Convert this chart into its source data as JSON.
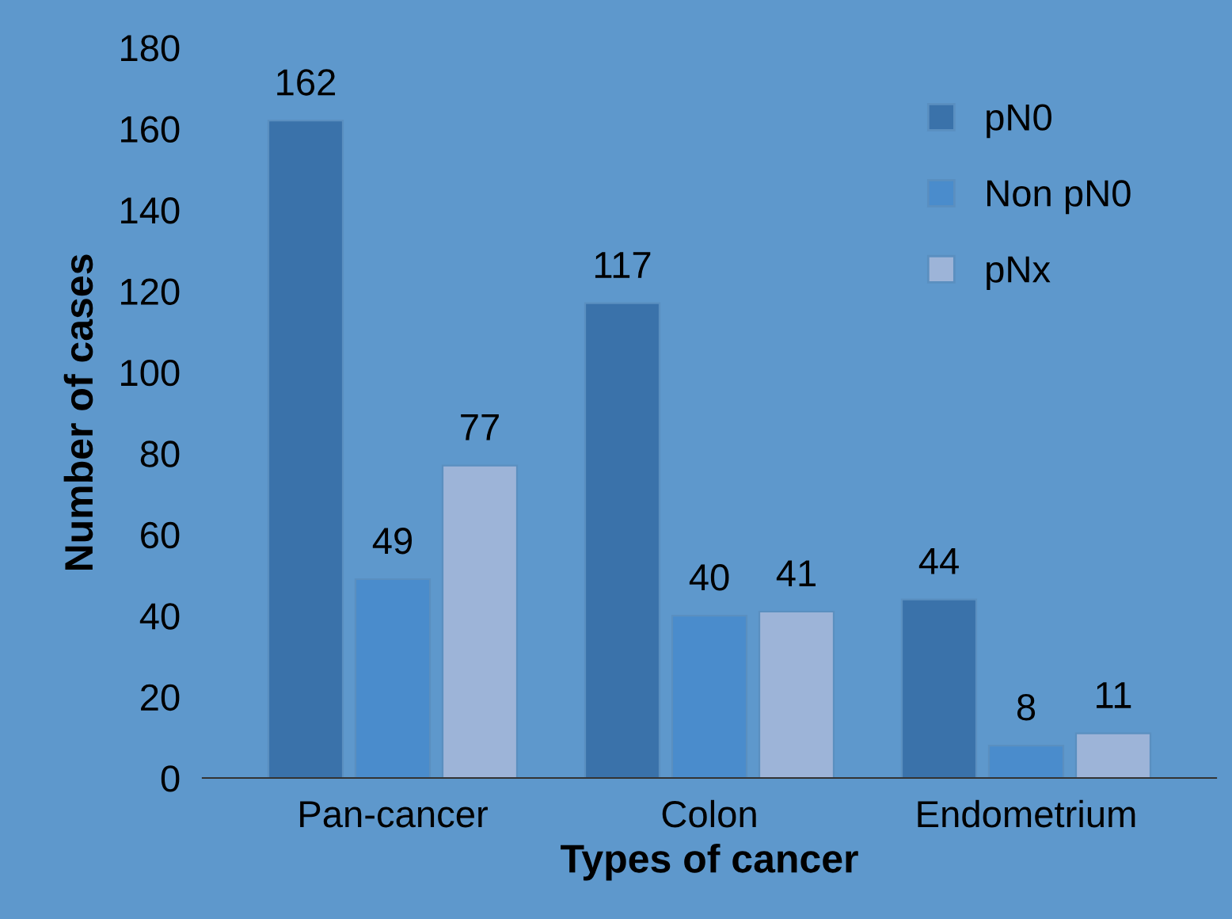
{
  "chart_data": {
    "type": "bar",
    "xlabel": "Types of cancer",
    "ylabel": "Number of cases",
    "categories": [
      "Pan-cancer",
      "Colon",
      "Endometrium"
    ],
    "series": [
      {
        "name": "pN0",
        "color": "#3a72aa",
        "values": [
          162,
          117,
          44
        ]
      },
      {
        "name": "Non pN0",
        "color": "#4a8ccc",
        "values": [
          49,
          40,
          8
        ]
      },
      {
        "name": "pNx",
        "color": "#9db4d8",
        "values": [
          77,
          41,
          11
        ]
      }
    ],
    "ylim": [
      0,
      180
    ],
    "yticks": [
      0,
      20,
      40,
      60,
      80,
      100,
      120,
      140,
      160,
      180
    ],
    "data_labels": true,
    "legend": "top right",
    "grid": false
  }
}
